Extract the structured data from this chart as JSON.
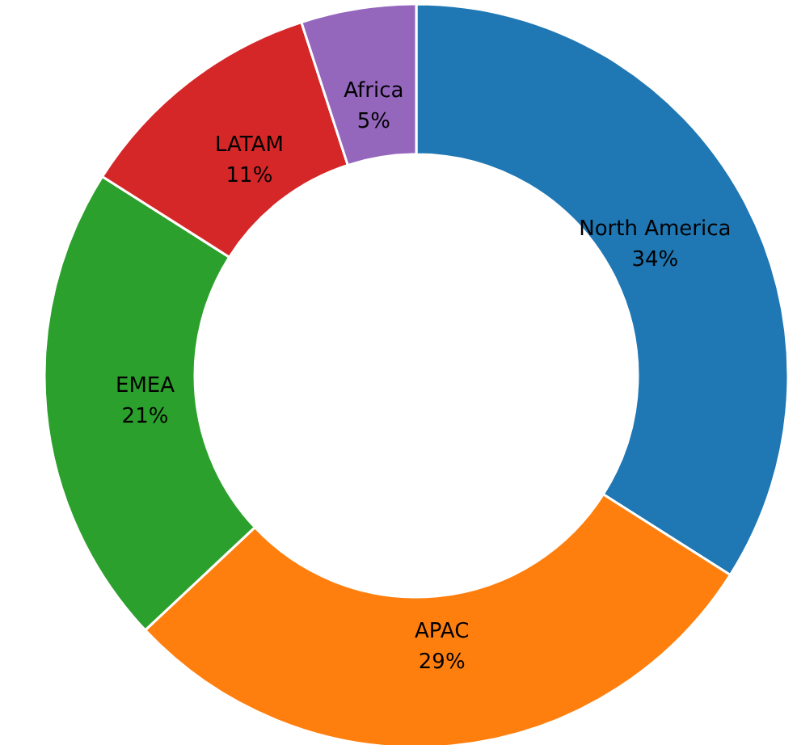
{
  "chart_data": {
    "type": "donut",
    "categories": [
      "North America",
      "APAC",
      "EMEA",
      "LATAM",
      "Africa"
    ],
    "values": [
      34,
      29,
      21,
      11,
      5
    ],
    "value_labels": [
      "34%",
      "29%",
      "21%",
      "11%",
      "5%"
    ],
    "colors": [
      "#1f77b4",
      "#ff7f0e",
      "#2ca02c",
      "#d62728",
      "#9467bd"
    ]
  }
}
